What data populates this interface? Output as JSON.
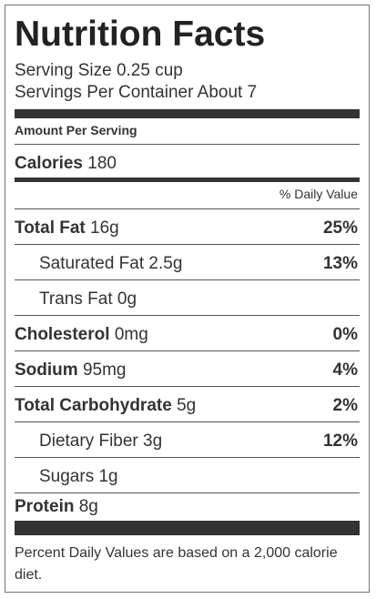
{
  "title": "Nutrition Facts",
  "serving_size": "Serving Size 0.25 cup",
  "servings_per_container": "Servings Per Container About 7",
  "amount_per_serving": "Amount Per Serving",
  "calories": {
    "label": "Calories",
    "value": "180"
  },
  "daily_value_header": "% Daily Value",
  "nutrients": [
    {
      "label": "Total Fat",
      "amount": "16g",
      "percent": "25%"
    },
    {
      "label": "Saturated Fat",
      "amount": "2.5g",
      "percent": "13%"
    },
    {
      "label": "Trans Fat",
      "amount": "0g",
      "percent": ""
    },
    {
      "label": "Cholesterol",
      "amount": "0mg",
      "percent": "0%"
    },
    {
      "label": "Sodium",
      "amount": "95mg",
      "percent": "4%"
    },
    {
      "label": "Total Carbohydrate",
      "amount": "5g",
      "percent": "2%"
    },
    {
      "label": "Dietary Fiber",
      "amount": "3g",
      "percent": "12%"
    },
    {
      "label": "Sugars",
      "amount": "1g",
      "percent": ""
    },
    {
      "label": "Protein",
      "amount": "8g",
      "percent": ""
    }
  ],
  "footnote": "Percent Daily Values are based on a 2,000 calorie diet."
}
